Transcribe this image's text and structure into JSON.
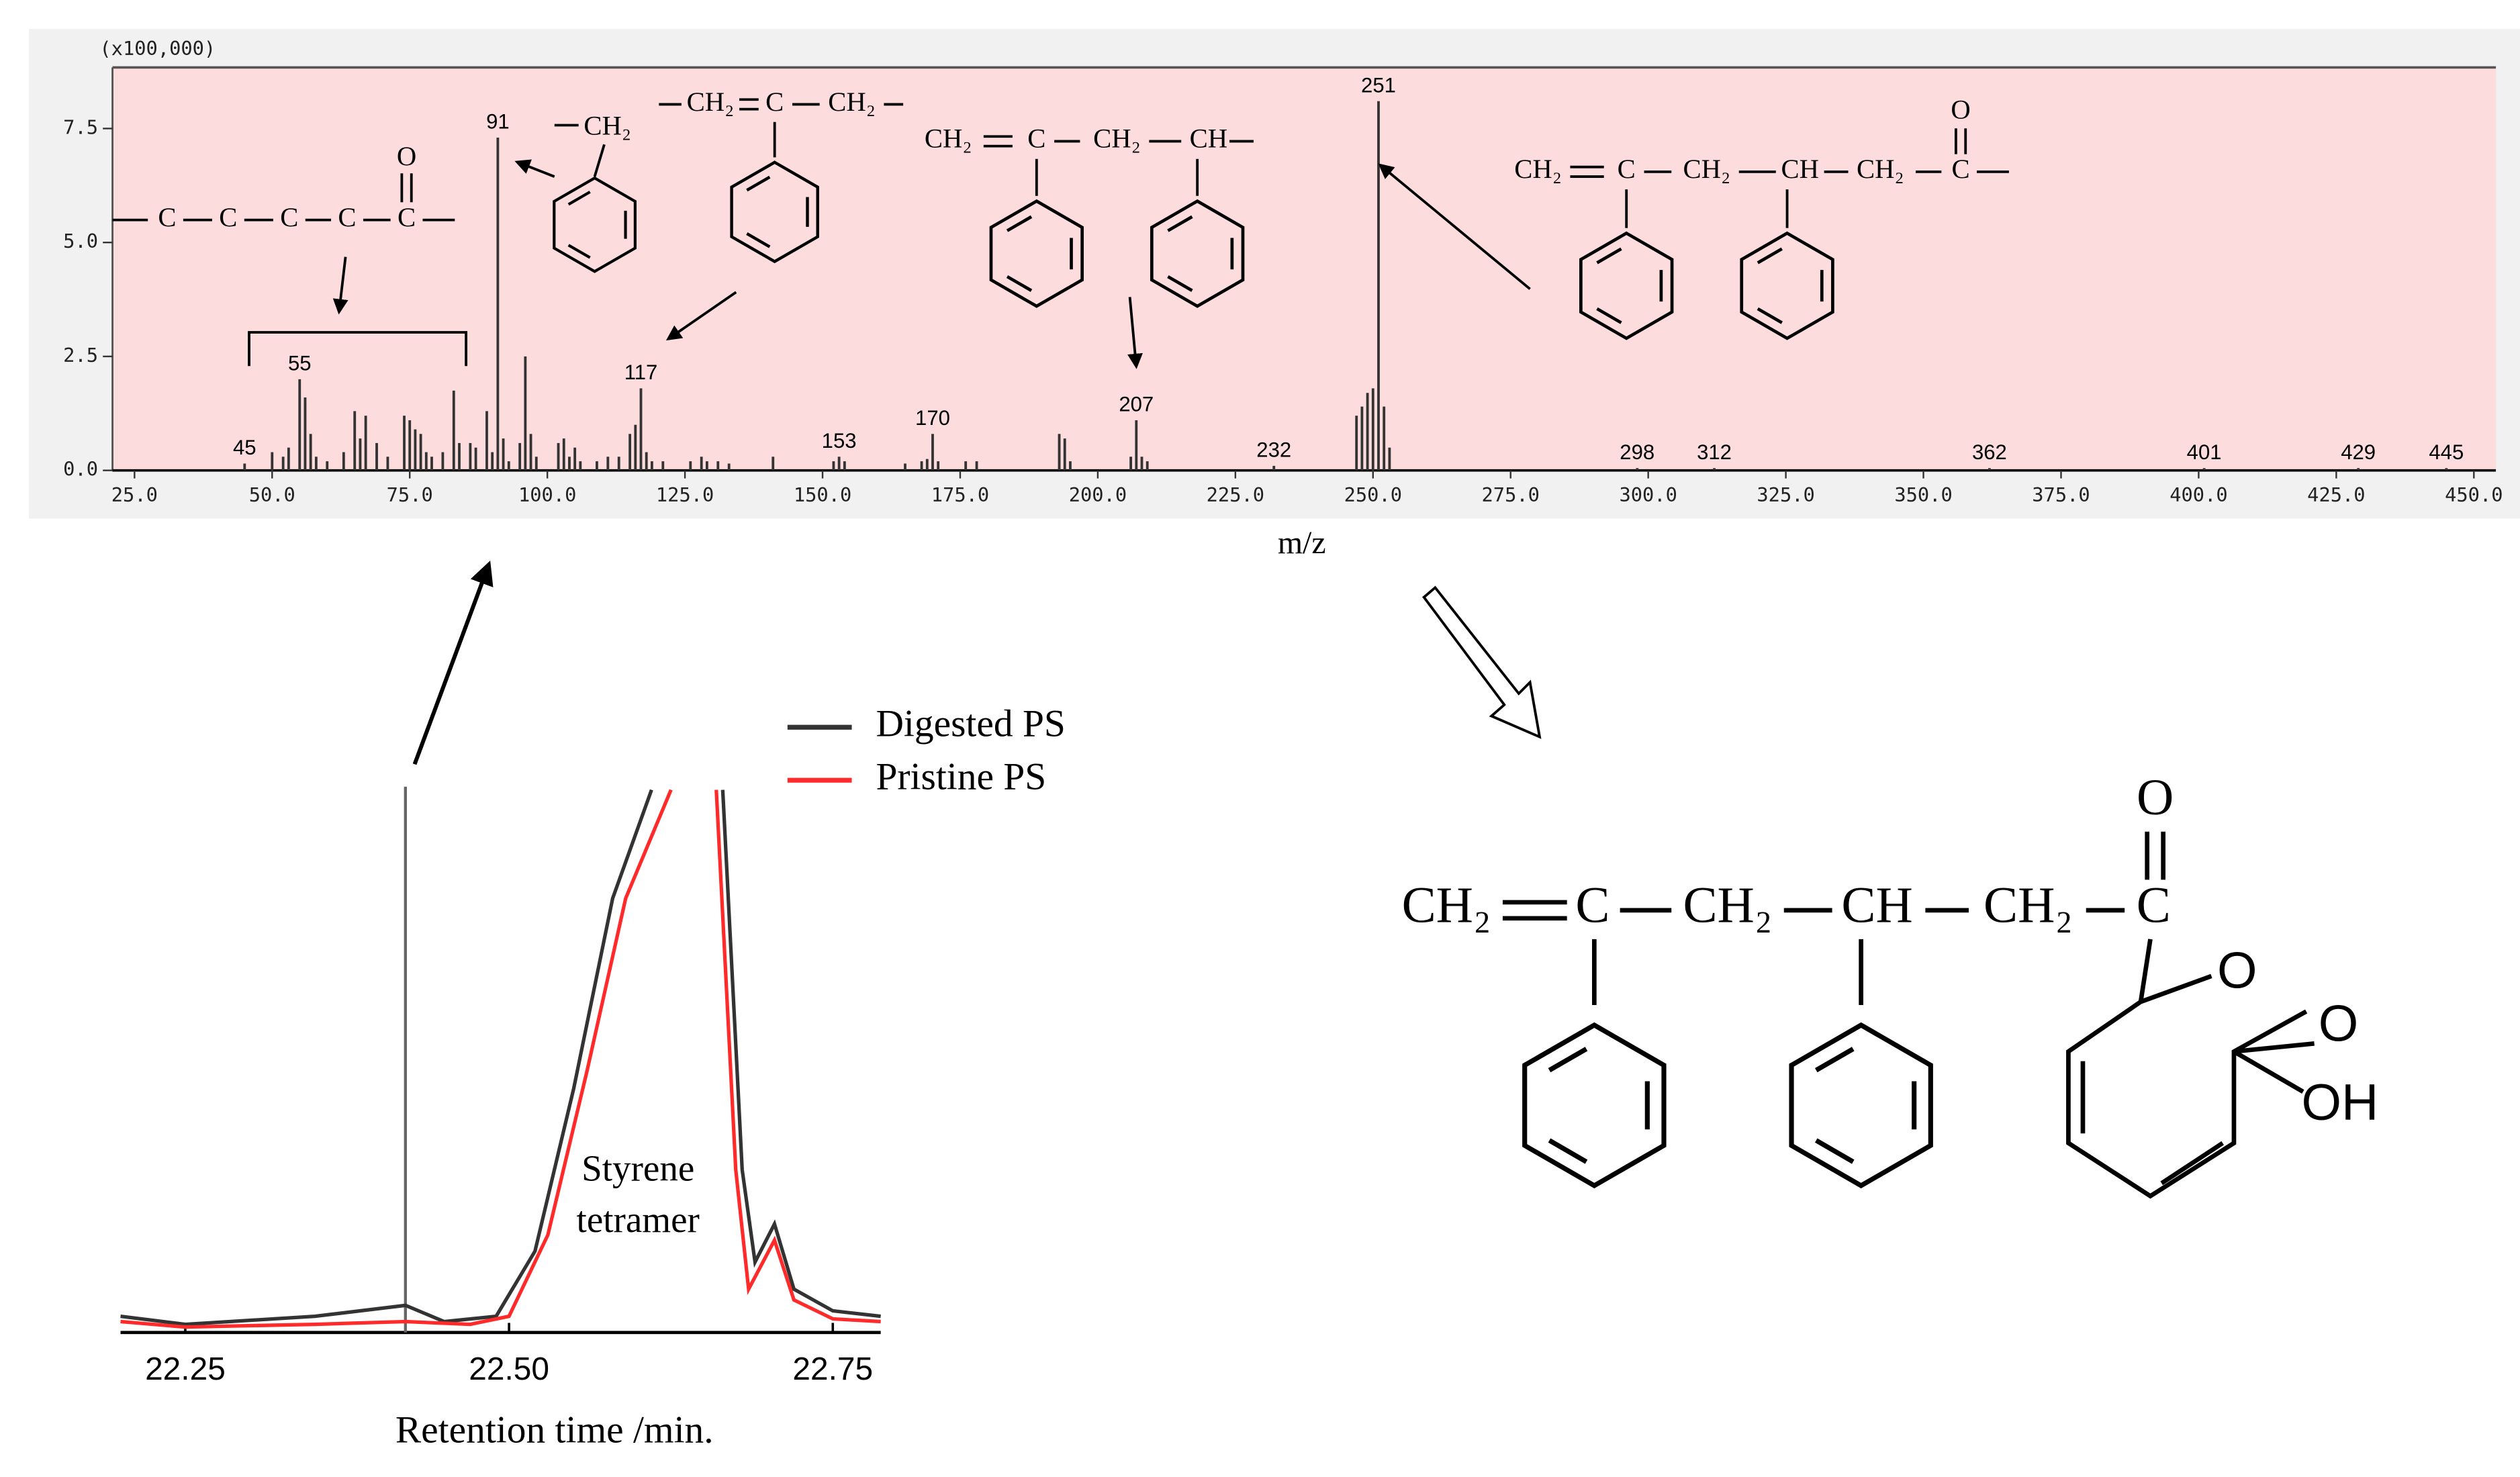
{
  "chart_data": [
    {
      "type": "bar",
      "multiplier_label": "(x100,000)",
      "x_label": "m/z",
      "xlim": [
        21,
        454
      ],
      "ylim": [
        0,
        8.84
      ],
      "xticks": [
        {
          "value": 25,
          "label": "25.0"
        },
        {
          "value": 50,
          "label": "50.0"
        },
        {
          "value": 75,
          "label": "75.0"
        },
        {
          "value": 100,
          "label": "100.0"
        },
        {
          "value": 125,
          "label": "125.0"
        },
        {
          "value": 150,
          "label": "150.0"
        },
        {
          "value": 175,
          "label": "175.0"
        },
        {
          "value": 200,
          "label": "200.0"
        },
        {
          "value": 225,
          "label": "225.0"
        },
        {
          "value": 250,
          "label": "250.0"
        },
        {
          "value": 275,
          "label": "275.0"
        },
        {
          "value": 300,
          "label": "300.0"
        },
        {
          "value": 325,
          "label": "325.0"
        },
        {
          "value": 350,
          "label": "350.0"
        },
        {
          "value": 375,
          "label": "375.0"
        },
        {
          "value": 400,
          "label": "400.0"
        },
        {
          "value": 425,
          "label": "425.0"
        },
        {
          "value": 450,
          "label": "450.0"
        }
      ],
      "yticks": [
        {
          "value": 0,
          "label": "0.0"
        },
        {
          "value": 2.5,
          "label": "2.5"
        },
        {
          "value": 5,
          "label": "5.0"
        },
        {
          "value": 7.5,
          "label": "7.5"
        }
      ],
      "color": "#333333",
      "label_color": "#1a1aee",
      "background": "#fcdcdc",
      "series": [
        {
          "x": [
            45,
            55,
            91,
            117,
            153,
            170,
            207,
            232,
            251,
            298,
            312,
            362,
            401,
            429,
            445
          ],
          "values": [
            0.15,
            2.0,
            7.3,
            1.8,
            0.3,
            0.8,
            1.1,
            0.1,
            8.1,
            0.05,
            0.05,
            0.05,
            0.05,
            0.05,
            0.05
          ]
        },
        {
          "x": [
            50,
            52,
            53,
            56,
            57,
            58,
            60,
            63,
            65,
            66,
            67,
            69,
            71,
            74,
            75,
            76,
            77,
            78,
            79,
            81,
            83,
            84,
            86,
            87,
            89,
            90,
            92,
            93,
            95,
            96,
            97,
            98,
            102,
            103,
            104,
            105,
            106,
            109,
            111,
            113,
            115,
            116,
            118,
            119,
            121,
            126,
            128,
            129,
            131,
            133,
            141,
            152,
            154,
            165,
            168,
            169,
            171,
            176,
            178,
            193,
            194,
            195,
            206,
            208,
            209,
            247,
            248,
            249,
            250,
            252,
            253
          ],
          "values": [
            0.4,
            0.3,
            0.5,
            1.6,
            0.8,
            0.3,
            0.2,
            0.4,
            1.3,
            0.7,
            1.2,
            0.6,
            0.3,
            1.2,
            1.1,
            0.9,
            0.8,
            0.4,
            0.3,
            0.4,
            1.75,
            0.6,
            0.6,
            0.5,
            1.3,
            0.4,
            0.7,
            0.2,
            0.6,
            2.5,
            0.8,
            0.3,
            0.6,
            0.7,
            0.3,
            0.5,
            0.2,
            0.2,
            0.3,
            0.3,
            0.8,
            1.0,
            0.4,
            0.2,
            0.2,
            0.2,
            0.3,
            0.2,
            0.2,
            0.15,
            0.3,
            0.2,
            0.2,
            0.15,
            0.2,
            0.25,
            0.2,
            0.2,
            0.2,
            0.8,
            0.7,
            0.2,
            0.3,
            0.3,
            0.2,
            1.2,
            1.4,
            1.7,
            1.8,
            1.4,
            0.5
          ]
        }
      ]
    },
    {
      "type": "line",
      "x_label": "Retention time /min.",
      "xlim": [
        22.2,
        22.787
      ],
      "ylim": [
        0,
        100
      ],
      "xticks": [
        22.25,
        {
          "value": 22.5,
          "label": "22.50"
        },
        22.75
      ],
      "cursor_x": 22.42,
      "annotation": [
        "Styrene",
        "tetramer"
      ],
      "series": [
        {
          "name": "Digested PS",
          "color": "#333333",
          "x": [
            22.2,
            22.25,
            22.35,
            22.42,
            22.45,
            22.49,
            22.52,
            22.55,
            22.58,
            22.61,
            22.64,
            22.665,
            22.68,
            22.69,
            22.705,
            22.72,
            22.75,
            22.787
          ],
          "values": [
            3,
            1.5,
            3,
            5,
            2,
            3,
            15,
            45,
            80,
            100,
            null,
            100,
            30,
            13,
            20,
            8,
            4,
            3
          ]
        },
        {
          "name": "Pristine PS",
          "color": "#ff2a2a",
          "x": [
            22.2,
            22.25,
            22.35,
            22.42,
            22.47,
            22.5,
            22.53,
            22.56,
            22.59,
            22.625,
            22.64,
            22.66,
            22.675,
            22.685,
            22.705,
            22.72,
            22.75,
            22.787
          ],
          "values": [
            2,
            1,
            1.5,
            2,
            1.5,
            3,
            18,
            48,
            80,
            100,
            null,
            100,
            30,
            8,
            17,
            6,
            2.5,
            2
          ]
        }
      ]
    }
  ],
  "structures": [
    {
      "labels": [
        "C",
        "C",
        "C",
        "C",
        "C",
        "O"
      ]
    },
    {
      "labels": [
        "CH₂"
      ]
    },
    {
      "labels": [
        "CH₂",
        "C",
        "CH₂"
      ]
    },
    {
      "labels": [
        "CH₂",
        "C",
        "CH₂",
        "CH"
      ]
    },
    {
      "labels": [
        "CH₂",
        "C",
        "CH₂",
        "CH",
        "CH₂",
        "C",
        "O"
      ]
    },
    {
      "labels": [
        "CH₂",
        "C",
        "CH₂",
        "CH",
        "CH₂",
        "C",
        "O",
        "O",
        "O",
        "OH"
      ]
    }
  ]
}
